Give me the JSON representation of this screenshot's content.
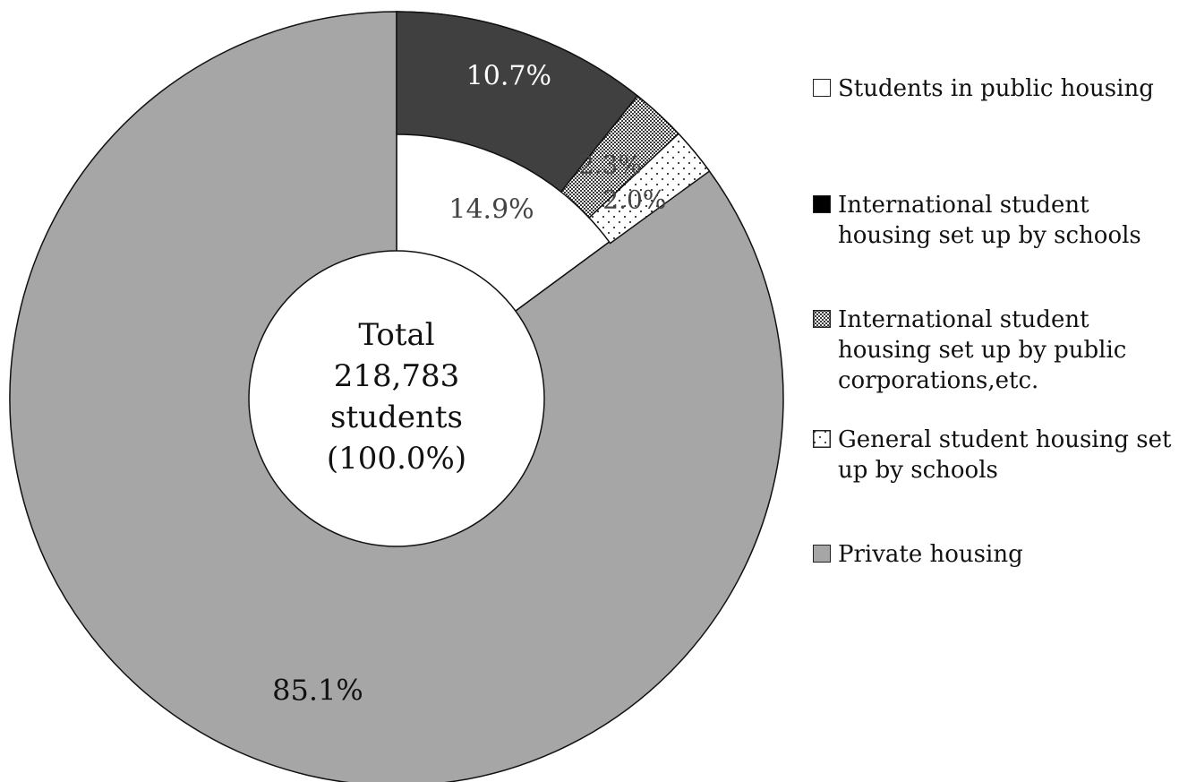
{
  "chart_data": {
    "type": "pie",
    "center_label": [
      "Total",
      "218,783",
      "students",
      "(100.0%)"
    ],
    "outer_ring": [
      {
        "label": "Students in public housing",
        "value": 14.9,
        "value_label": "14.9%",
        "pattern": "solid",
        "color": "#ffffff"
      },
      {
        "label": "Private housing",
        "value": 85.1,
        "value_label": "85.1%",
        "pattern": "solid",
        "color": "#a6a6a6"
      }
    ],
    "inner_breakdown": [
      {
        "label": "International student housing set up by schools",
        "value": 10.7,
        "value_label": "10.7%",
        "pattern": "solid",
        "color": "#404040"
      },
      {
        "label": "International student housing set up by public corporations,etc.",
        "value": 2.3,
        "value_label": "2.3%",
        "pattern": "crosshatch",
        "color": "#808080"
      },
      {
        "label": "General student housing set up by schools",
        "value": 2.0,
        "value_label": "2.0%",
        "pattern": "dots",
        "color": "#ffffff"
      }
    ],
    "legend": [
      {
        "label": "Students in public housing",
        "swatch": "white"
      },
      {
        "label": "International student housing set up by schools",
        "swatch": "black"
      },
      {
        "label": "International student housing set up by public corporations,etc.",
        "swatch": "crosshatch"
      },
      {
        "label": "General student housing set up by schools",
        "swatch": "dots"
      },
      {
        "label": "Private housing",
        "swatch": "gray"
      }
    ],
    "legend_placement": "right"
  }
}
